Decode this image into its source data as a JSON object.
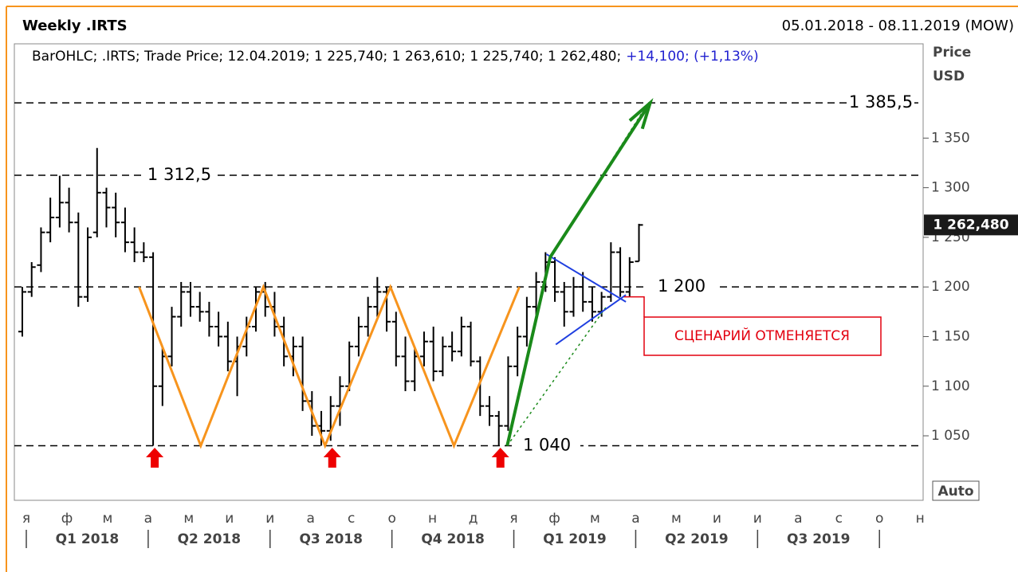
{
  "chart_data": {
    "type": "ohlc",
    "title": "Weekly .IRTS",
    "date_range": "05.01.2018 - 08.11.2019 (MOW)",
    "info": "BarOHLC; .IRTS; Trade Price; 12.04.2019; 1 225,740; 1 263,610; 1 225,740; 1 262,480;",
    "info_change": "+14,100; (+1,13%)",
    "y_axis_title": [
      "Price",
      "USD"
    ],
    "scale_button": "Auto",
    "ylim": [
      985,
      1445
    ],
    "yticks": [
      {
        "value": 1050,
        "label": "1 050"
      },
      {
        "value": 1100,
        "label": "1 100"
      },
      {
        "value": 1150,
        "label": "1 150"
      },
      {
        "value": 1200,
        "label": "1 200"
      },
      {
        "value": 1250,
        "label": "1 250"
      },
      {
        "value": 1300,
        "label": "1 300"
      },
      {
        "value": 1350,
        "label": "1 350"
      }
    ],
    "months": [
      "я",
      "ф",
      "м",
      "а",
      "м",
      "и",
      "и",
      "а",
      "с",
      "о",
      "н",
      "д",
      "я",
      "ф",
      "м",
      "а",
      "м",
      "и",
      "и",
      "а",
      "с",
      "о",
      "н"
    ],
    "quarters": [
      "Q1 2018",
      "Q2 2018",
      "Q3 2018",
      "Q4 2018",
      "Q1 2019",
      "Q2 2019",
      "Q3 2019"
    ],
    "color": "#000000",
    "ohlc": [
      [
        1155,
        1200,
        1150,
        1195
      ],
      [
        1195,
        1225,
        1190,
        1220
      ],
      [
        1222,
        1260,
        1215,
        1255
      ],
      [
        1255,
        1290,
        1245,
        1270
      ],
      [
        1270,
        1312,
        1260,
        1285
      ],
      [
        1285,
        1300,
        1255,
        1265
      ],
      [
        1265,
        1275,
        1180,
        1190
      ],
      [
        1190,
        1260,
        1185,
        1250
      ],
      [
        1255,
        1340,
        1250,
        1295
      ],
      [
        1295,
        1300,
        1260,
        1280
      ],
      [
        1280,
        1295,
        1250,
        1265
      ],
      [
        1265,
        1280,
        1235,
        1245
      ],
      [
        1245,
        1260,
        1225,
        1235
      ],
      [
        1235,
        1245,
        1225,
        1230
      ],
      [
        1230,
        1235,
        1040,
        1100
      ],
      [
        1100,
        1140,
        1080,
        1130
      ],
      [
        1130,
        1180,
        1120,
        1170
      ],
      [
        1170,
        1205,
        1160,
        1195
      ],
      [
        1195,
        1205,
        1170,
        1180
      ],
      [
        1180,
        1195,
        1165,
        1175
      ],
      [
        1175,
        1185,
        1150,
        1160
      ],
      [
        1160,
        1175,
        1140,
        1150
      ],
      [
        1150,
        1165,
        1115,
        1125
      ],
      [
        1125,
        1150,
        1090,
        1140
      ],
      [
        1140,
        1170,
        1130,
        1160
      ],
      [
        1160,
        1200,
        1155,
        1195
      ],
      [
        1195,
        1205,
        1170,
        1180
      ],
      [
        1180,
        1195,
        1150,
        1160
      ],
      [
        1160,
        1170,
        1120,
        1130
      ],
      [
        1130,
        1150,
        1110,
        1140
      ],
      [
        1140,
        1150,
        1075,
        1085
      ],
      [
        1085,
        1095,
        1050,
        1060
      ],
      [
        1060,
        1075,
        1040,
        1055
      ],
      [
        1055,
        1090,
        1045,
        1080
      ],
      [
        1080,
        1110,
        1060,
        1100
      ],
      [
        1100,
        1145,
        1095,
        1140
      ],
      [
        1140,
        1170,
        1130,
        1160
      ],
      [
        1160,
        1190,
        1150,
        1180
      ],
      [
        1180,
        1210,
        1170,
        1195
      ],
      [
        1195,
        1200,
        1155,
        1165
      ],
      [
        1165,
        1175,
        1120,
        1130
      ],
      [
        1130,
        1150,
        1095,
        1105
      ],
      [
        1105,
        1140,
        1095,
        1130
      ],
      [
        1130,
        1155,
        1120,
        1145
      ],
      [
        1145,
        1160,
        1105,
        1115
      ],
      [
        1115,
        1150,
        1110,
        1140
      ],
      [
        1140,
        1155,
        1125,
        1135
      ],
      [
        1135,
        1170,
        1130,
        1160
      ],
      [
        1160,
        1165,
        1120,
        1125
      ],
      [
        1125,
        1130,
        1070,
        1080
      ],
      [
        1080,
        1090,
        1060,
        1070
      ],
      [
        1070,
        1075,
        1040,
        1060
      ],
      [
        1060,
        1130,
        1055,
        1120
      ],
      [
        1120,
        1160,
        1110,
        1150
      ],
      [
        1150,
        1190,
        1140,
        1180
      ],
      [
        1180,
        1215,
        1170,
        1205
      ],
      [
        1205,
        1235,
        1195,
        1225
      ],
      [
        1225,
        1230,
        1185,
        1195
      ],
      [
        1195,
        1205,
        1160,
        1175
      ],
      [
        1175,
        1210,
        1170,
        1200
      ],
      [
        1200,
        1215,
        1175,
        1185
      ],
      [
        1185,
        1200,
        1165,
        1175
      ],
      [
        1175,
        1195,
        1170,
        1190
      ],
      [
        1190,
        1245,
        1185,
        1235
      ],
      [
        1235,
        1240,
        1190,
        1195
      ],
      [
        1195,
        1230,
        1190,
        1225
      ],
      [
        1225.74,
        1263.61,
        1225.74,
        1262.48
      ]
    ],
    "last_price": {
      "value": 1262.48,
      "label": "1 262,480"
    },
    "levels": [
      {
        "value": 1385.5,
        "label": "1 385,5"
      },
      {
        "value": 1312.5,
        "label": "1 312,5"
      },
      {
        "value": 1200,
        "label": "1 200"
      },
      {
        "value": 1040,
        "label": "1 040"
      }
    ],
    "w_pattern": {
      "color": "#f7941d",
      "points": [
        [
          12.5,
          1200
        ],
        [
          19.1,
          1040
        ],
        [
          25.8,
          1200
        ],
        [
          32.4,
          1040
        ],
        [
          39.4,
          1200
        ],
        [
          46.2,
          1040
        ],
        [
          53.2,
          1200
        ]
      ]
    },
    "target_arrow": {
      "color": "#1a8a1a",
      "points": [
        [
          51.9,
          1040
        ],
        [
          56.5,
          1230
        ],
        [
          67.2,
          1385.5
        ]
      ]
    },
    "channel": {
      "color": "#1a8a1a",
      "lines": [
        [
          [
            51.9,
            1040
          ],
          [
            62.5,
            1180
          ]
        ],
        [
          [
            56.5,
            1230
          ],
          [
            67.0,
            1385.5
          ]
        ]
      ]
    },
    "triangle": {
      "color": "#1f3fe0",
      "lines": [
        [
          [
            56.1,
            1233
          ],
          [
            64.6,
            1185
          ]
        ],
        [
          [
            57.1,
            1142
          ],
          [
            64.6,
            1192
          ]
        ]
      ]
    },
    "signal_bars": [
      14,
      33,
      51
    ],
    "callout": {
      "text": "СЦЕНАРИЙ ОТМЕНЯЕТСЯ",
      "color": "#e3000f",
      "anchor": [
        64.4,
        1190
      ]
    }
  }
}
